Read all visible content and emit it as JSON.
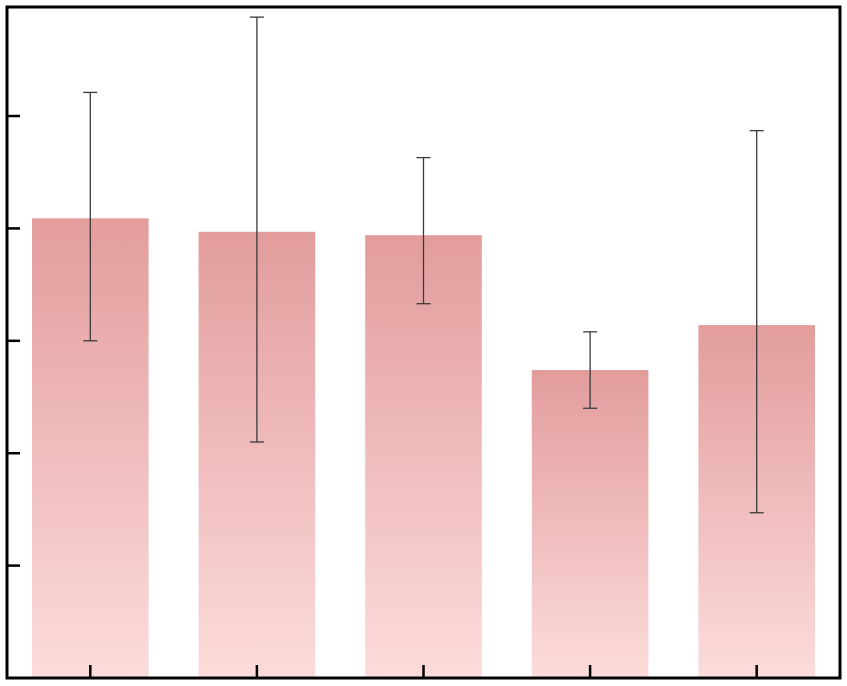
{
  "chart_data": {
    "type": "bar",
    "title": "",
    "xlabel": "",
    "ylabel": "",
    "categories": [
      "",
      "",
      "",
      "",
      ""
    ],
    "values": [
      4.09,
      3.97,
      3.94,
      2.74,
      3.14
    ],
    "error_low": [
      3.0,
      2.1,
      3.33,
      2.4,
      1.47
    ],
    "error_high": [
      5.21,
      5.88,
      4.63,
      3.08,
      4.87
    ],
    "ylim": [
      0,
      5.97
    ],
    "y_ticks": [
      1,
      2,
      3,
      4,
      5
    ],
    "y_tick_labels": [
      "",
      "",
      "",
      "",
      ""
    ],
    "grid": false,
    "legend": "none",
    "colors": {
      "bar_top": "#e39c9c",
      "bar_bottom": "#fcdcdc",
      "error_bar": "#3a3a3a",
      "axis": "#000000",
      "background": "#ffffff"
    }
  }
}
